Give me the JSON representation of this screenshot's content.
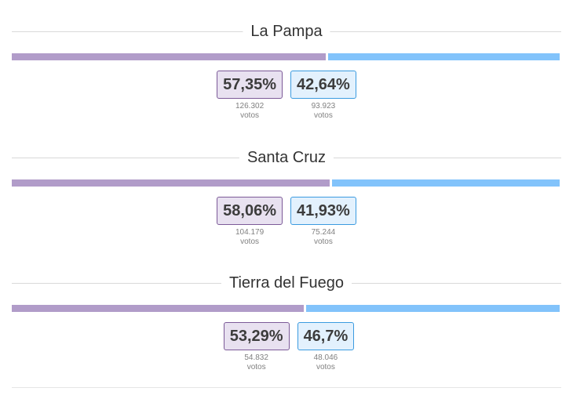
{
  "colors": {
    "party_a": "#b19cc9",
    "party_b": "#82c3fb",
    "card_a_border": "#7c5a98",
    "card_b_border": "#3b9be0"
  },
  "regions": [
    {
      "name": "La Pampa",
      "share_a": 0.5735,
      "share_b": 0.4264,
      "pct_a": "57,35%",
      "pct_b": "42,64%",
      "votes_a": "126.302",
      "votes_b": "93.923",
      "votes_label": "votos"
    },
    {
      "name": "Santa Cruz",
      "share_a": 0.5806,
      "share_b": 0.4193,
      "pct_a": "58,06%",
      "pct_b": "41,93%",
      "votes_a": "104.179",
      "votes_b": "75.244",
      "votes_label": "votos"
    },
    {
      "name": "Tierra del Fuego",
      "share_a": 0.5329,
      "share_b": 0.467,
      "pct_a": "53,29%",
      "pct_b": "46,7%",
      "votes_a": "54.832",
      "votes_b": "48.046",
      "votes_label": "votos"
    }
  ]
}
